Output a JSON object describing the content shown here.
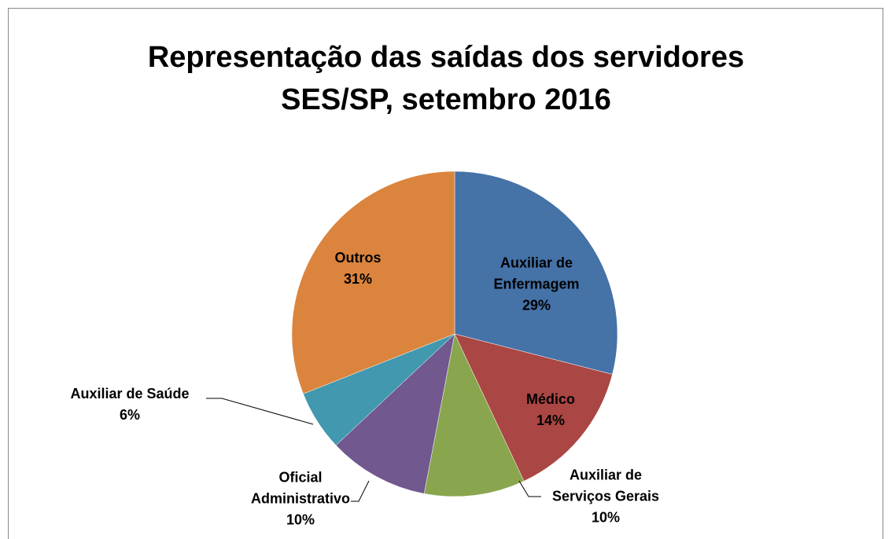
{
  "chart_data": {
    "type": "pie",
    "title": "Representação das saídas dos servidores SES/SP, setembro 2016",
    "categories": [
      "Auxiliar de Enfermagem",
      "Médico",
      "Auxiliar de Serviços Gerais",
      "Oficial Administrativo",
      "Auxiliar de Saúde",
      "Outros"
    ],
    "values": [
      29,
      14,
      10,
      10,
      6,
      31
    ],
    "value_labels": [
      "29%",
      "14%",
      "10%",
      "10%",
      "6%",
      "31%"
    ],
    "colors": [
      "#4572a7",
      "#aa4643",
      "#89a54e",
      "#71588f",
      "#4198af",
      "#db843d"
    ]
  }
}
